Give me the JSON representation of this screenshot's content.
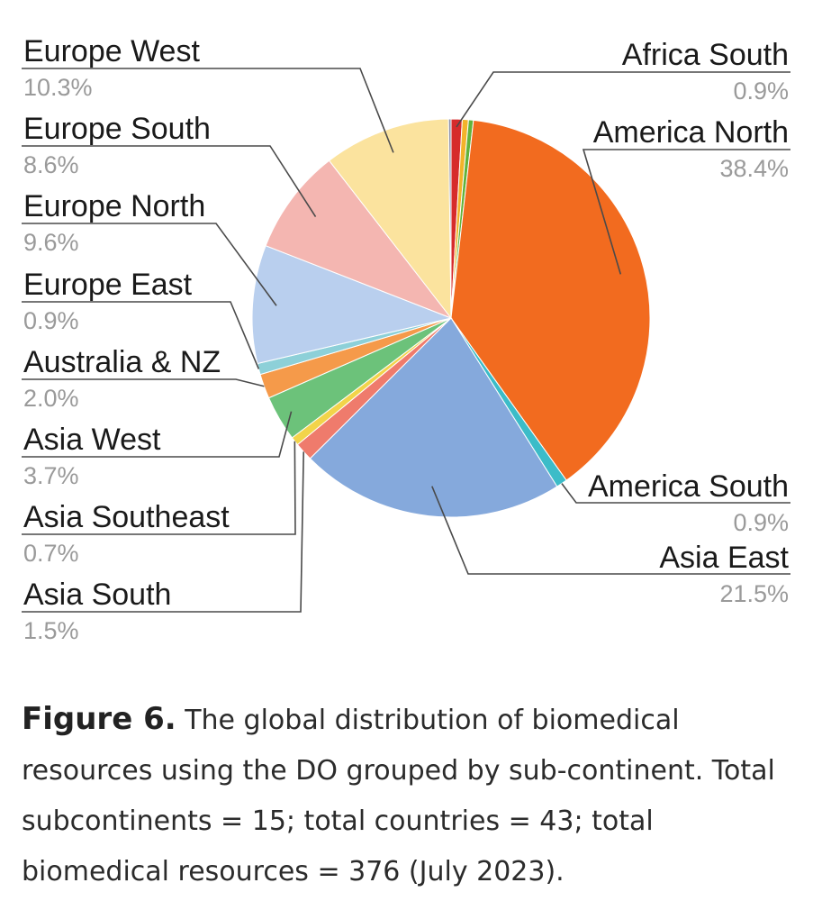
{
  "chart_data": {
    "type": "pie",
    "slices": [
      {
        "label": "Africa South",
        "pct_label": "0.9%",
        "value": 0.9,
        "color": "#d62b2b"
      },
      {
        "label": "",
        "pct_label": "",
        "value": 0.5,
        "color": "#f2b32a"
      },
      {
        "label": "",
        "pct_label": "",
        "value": 0.4,
        "color": "#62b33b"
      },
      {
        "label": "America North",
        "pct_label": "38.4%",
        "value": 38.4,
        "color": "#f26b1f"
      },
      {
        "label": "America South",
        "pct_label": "0.9%",
        "value": 0.9,
        "color": "#3cbcc8"
      },
      {
        "label": "Asia East",
        "pct_label": "21.5%",
        "value": 21.5,
        "color": "#85a9dc"
      },
      {
        "label": "Asia South",
        "pct_label": "1.5%",
        "value": 1.5,
        "color": "#ef7b6c"
      },
      {
        "label": "Asia Southeast",
        "pct_label": "0.7%",
        "value": 0.7,
        "color": "#f2d44a"
      },
      {
        "label": "Asia West",
        "pct_label": "3.7%",
        "value": 3.7,
        "color": "#6cc27a"
      },
      {
        "label": "Australia & NZ",
        "pct_label": "2.0%",
        "value": 2.0,
        "color": "#f59a4a"
      },
      {
        "label": "Europe East",
        "pct_label": "0.9%",
        "value": 0.9,
        "color": "#8dd0d8"
      },
      {
        "label": "Europe North",
        "pct_label": "9.6%",
        "value": 9.6,
        "color": "#b9cfee"
      },
      {
        "label": "Europe South",
        "pct_label": "8.6%",
        "value": 8.6,
        "color": "#f4b6b1"
      },
      {
        "label": "Europe West",
        "pct_label": "10.3%",
        "value": 10.3,
        "color": "#fbe39e"
      },
      {
        "label": "",
        "pct_label": "",
        "value": 0.2,
        "color": "#8a8fa8"
      }
    ]
  },
  "caption": {
    "figure_label": "Figure 6.",
    "text": "The global distribution of biomedical resources using the DO grouped by sub-continent. Total subcontinents = 15; total countries = 43; total biomedical resources = 376 (July 2023)."
  }
}
